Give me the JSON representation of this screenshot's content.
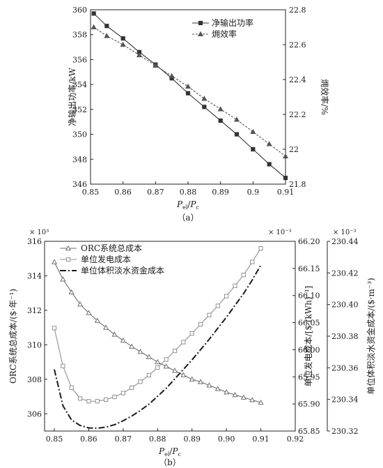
{
  "chart_data": [
    {
      "type": "line",
      "caption": "（a）",
      "xlabel": "P_el/P_c",
      "ylabel": "净输出功率/kW",
      "ylabel_right": "㶲效率/%",
      "x": [
        0.851,
        0.855,
        0.86,
        0.865,
        0.87,
        0.875,
        0.88,
        0.885,
        0.89,
        0.895,
        0.9,
        0.905,
        0.91
      ],
      "xlim": [
        0.85,
        0.91
      ],
      "xticks": [
        "0.85",
        "0.86",
        "0.87",
        "0.88",
        "0.89",
        "0.9",
        "0.91"
      ],
      "ylim": [
        346,
        360
      ],
      "yticks": [
        "346",
        "348",
        "350",
        "352",
        "354",
        "356",
        "358",
        "360"
      ],
      "ylim_right": [
        21.8,
        22.8
      ],
      "yticks_right": [
        "21.8",
        "22",
        "22.2",
        "22.4",
        "22.6",
        "22.8"
      ],
      "legend_position": "top-right",
      "series": [
        {
          "name": "净输出功率",
          "axis": "left",
          "marker": "square",
          "color": "#333333",
          "values": [
            359.7,
            358.7,
            357.7,
            356.6,
            355.6,
            354.5,
            353.3,
            352.2,
            351.1,
            350.0,
            348.8,
            347.6,
            346.5
          ]
        },
        {
          "name": "㶲效率",
          "axis": "right",
          "marker": "triangle",
          "color": "#555555",
          "values": [
            22.7,
            22.65,
            22.6,
            22.54,
            22.48,
            22.42,
            22.36,
            22.29,
            22.23,
            22.17,
            22.1,
            22.03,
            21.96
          ]
        }
      ]
    },
    {
      "type": "line",
      "caption": "（b）",
      "xlabel": "P_el/P_c",
      "ylabel": "ORC系统总成本/($·年⁻¹)",
      "ylabel_right": "单位发电成本/[$·(kWh)⁻¹]",
      "ylabel_right2": "单位体积淡水资金成本/($·m⁻³)",
      "y_multiplier": "× 10³",
      "y_right_multiplier": "× 10⁻³",
      "y_right2_multiplier": "× 10⁻³",
      "x": [
        0.85,
        0.8525,
        0.855,
        0.8575,
        0.86,
        0.8625,
        0.865,
        0.8675,
        0.87,
        0.8725,
        0.875,
        0.8775,
        0.88,
        0.8825,
        0.885,
        0.8875,
        0.89,
        0.8925,
        0.895,
        0.8975,
        0.9,
        0.9025,
        0.905,
        0.9075,
        0.91
      ],
      "xlim": [
        0.85,
        0.92
      ],
      "xticks": [
        "0.85",
        "0.86",
        "0.87",
        "0.88",
        "0.89",
        "0.90",
        "0.91",
        "0.92"
      ],
      "ylim": [
        305,
        316
      ],
      "yticks": [
        "306",
        "308",
        "310",
        "312",
        "314",
        "316"
      ],
      "ylim_right": [
        65.85,
        66.2
      ],
      "yticks_right": [
        "65.85",
        "65.90",
        "65.95",
        "66.00",
        "66.05",
        "66.10",
        "66.15",
        "66.20"
      ],
      "ylim_right2": [
        230.32,
        230.44
      ],
      "yticks_right2": [
        "230.32",
        "230.34",
        "230.36",
        "230.38",
        "230.40",
        "230.42",
        "230.44"
      ],
      "legend_position": "top-left",
      "series": [
        {
          "name": "ORC系统总成本",
          "axis": "left",
          "marker": "triangle",
          "color": "#6e6e6e",
          "dash": "solid",
          "values": [
            314.8,
            313.8,
            313.05,
            312.35,
            311.85,
            311.4,
            311.0,
            310.6,
            310.25,
            309.9,
            309.6,
            309.3,
            309.0,
            308.75,
            308.5,
            308.25,
            308.0,
            307.85,
            307.65,
            307.45,
            307.25,
            307.1,
            306.95,
            306.8,
            306.65
          ]
        },
        {
          "name": "单位发电成本",
          "axis": "right",
          "marker": "square",
          "color": "#909090",
          "dash": "solid",
          "values": [
            66.04,
            65.97,
            65.93,
            65.91,
            65.905,
            65.905,
            65.908,
            65.913,
            65.92,
            65.93,
            65.941,
            65.953,
            65.967,
            65.982,
            65.998,
            66.014,
            66.03,
            66.047,
            66.064,
            66.081,
            66.099,
            66.118,
            66.138,
            66.162,
            66.187
          ]
        },
        {
          "name": "单位体积淡水资金成本",
          "axis": "right2",
          "marker": "none",
          "color": "#1a1a1a",
          "dash": "dashdot",
          "values": [
            230.359,
            230.336,
            230.327,
            230.3235,
            230.322,
            230.3218,
            230.3225,
            230.324,
            230.3265,
            230.3295,
            230.333,
            230.337,
            230.342,
            230.347,
            230.353,
            230.359,
            230.365,
            230.3715,
            230.378,
            230.385,
            230.392,
            230.3995,
            230.407,
            230.4155,
            230.425
          ]
        }
      ]
    }
  ]
}
